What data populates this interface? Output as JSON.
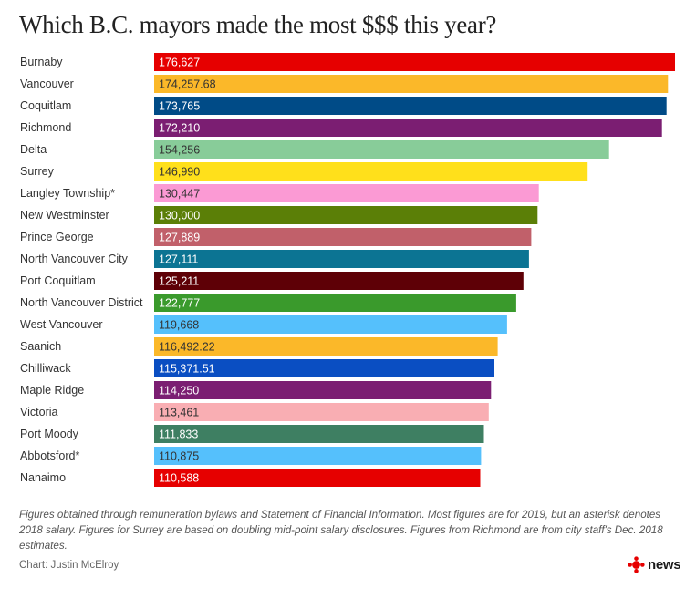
{
  "title": "Which B.C. mayors made the most $$$ this year?",
  "chart_data": {
    "type": "bar",
    "orientation": "horizontal",
    "title": "Which B.C. mayors made the most $$$ this year?",
    "xlabel": "",
    "ylabel": "",
    "xlim": [
      0,
      176627
    ],
    "grid": false,
    "bars": [
      {
        "category": "Burnaby",
        "value": 176627,
        "label": "176,627",
        "color": "#e60000",
        "text_color": "#ffffff"
      },
      {
        "category": "Vancouver",
        "value": 174257.68,
        "label": "174,257.68",
        "color": "#fbb829",
        "text_color": "#333333"
      },
      {
        "category": "Coquitlam",
        "value": 173765,
        "label": "173,765",
        "color": "#004b87",
        "text_color": "#ffffff"
      },
      {
        "category": "Richmond",
        "value": 172210,
        "label": "172,210",
        "color": "#7b1e72",
        "text_color": "#ffffff"
      },
      {
        "category": "Delta",
        "value": 154256,
        "label": "154,256",
        "color": "#88cc99",
        "text_color": "#333333"
      },
      {
        "category": "Surrey",
        "value": 146990,
        "label": "146,990",
        "color": "#ffe01b",
        "text_color": "#333333"
      },
      {
        "category": "Langley Township*",
        "value": 130447,
        "label": "130,447",
        "color": "#fb9ad4",
        "text_color": "#333333"
      },
      {
        "category": "New Westminster",
        "value": 130000,
        "label": "130,000",
        "color": "#5b7f07",
        "text_color": "#ffffff"
      },
      {
        "category": "Prince George",
        "value": 127889,
        "label": "127,889",
        "color": "#c1606a",
        "text_color": "#ffffff"
      },
      {
        "category": "North Vancouver City",
        "value": 127111,
        "label": "127,111",
        "color": "#0c7493",
        "text_color": "#ffffff"
      },
      {
        "category": "Port Coquitlam",
        "value": 125211,
        "label": "125,211",
        "color": "#5e0006",
        "text_color": "#ffffff"
      },
      {
        "category": "North Vancouver District",
        "value": 122777,
        "label": "122,777",
        "color": "#3a9a2c",
        "text_color": "#ffffff"
      },
      {
        "category": "West Vancouver",
        "value": 119668,
        "label": "119,668",
        "color": "#55c0fc",
        "text_color": "#333333"
      },
      {
        "category": "Saanich",
        "value": 116492.22,
        "label": "116,492.22",
        "color": "#fbb829",
        "text_color": "#333333"
      },
      {
        "category": "Chilliwack",
        "value": 115371.51,
        "label": "115,371.51",
        "color": "#0a4ec2",
        "text_color": "#ffffff"
      },
      {
        "category": "Maple Ridge",
        "value": 114250,
        "label": "114,250",
        "color": "#7b1e72",
        "text_color": "#ffffff"
      },
      {
        "category": "Victoria",
        "value": 113461,
        "label": "113,461",
        "color": "#f9aeb3",
        "text_color": "#333333"
      },
      {
        "category": "Port Moody",
        "value": 111833,
        "label": "111,833",
        "color": "#3e7f62",
        "text_color": "#ffffff"
      },
      {
        "category": "Abbotsford*",
        "value": 110875,
        "label": "110,875",
        "color": "#55c0fc",
        "text_color": "#333333"
      },
      {
        "category": "Nanaimo",
        "value": 110588,
        "label": "110,588",
        "color": "#e60000",
        "text_color": "#ffffff"
      }
    ]
  },
  "footnote": "Figures obtained through remuneration bylaws and Statement of Financial Information. Most figures are for 2019, but an asterisk denotes 2018 salary. Figures for Surrey are based on doubling mid-point salary disclosures. Figures from Richmond are from city staff's Dec. 2018 estimates.",
  "credit": "Chart: Justin McElroy",
  "logo": {
    "text": "news",
    "icon": "cbc-gem-icon",
    "color": "#e60000"
  }
}
